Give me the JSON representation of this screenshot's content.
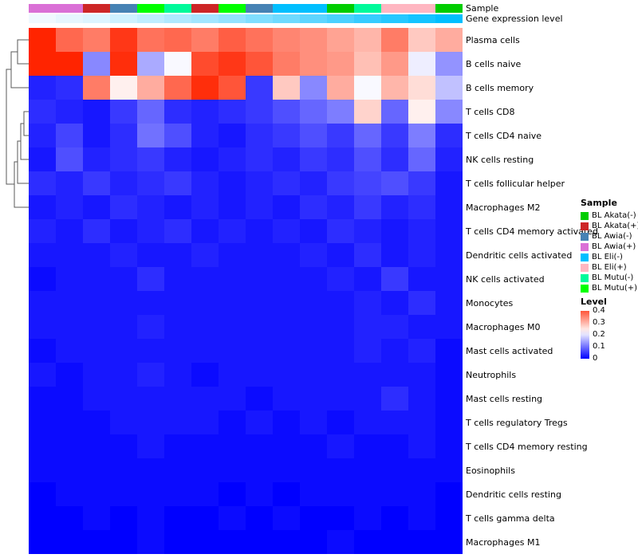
{
  "annotations": {
    "sample_label": "Sample",
    "expression_label": "Gene expression level"
  },
  "legends": {
    "sample": {
      "title": "Sample",
      "items": [
        {
          "label": "BL Akata(-)",
          "color": "#00CD00"
        },
        {
          "label": "BL Akata(+)",
          "color": "#CD2626"
        },
        {
          "label": "BL Awia(-)",
          "color": "#4682B4"
        },
        {
          "label": "BL Awia(+)",
          "color": "#DA70D6"
        },
        {
          "label": "BL Eli(-)",
          "color": "#00BFFF"
        },
        {
          "label": "BL Eli(+)",
          "color": "#FFB6C1"
        },
        {
          "label": "BL Mutu(-)",
          "color": "#00FA9A"
        },
        {
          "label": "BL Mutu(+)",
          "color": "#00FF00"
        }
      ]
    },
    "level": {
      "title": "Level",
      "ticks": [
        "0.4",
        "0.3",
        "0.2",
        "0.1",
        "0"
      ],
      "bar_max": 0.4,
      "bar_min": 0
    }
  },
  "colors": {
    "cmap": {
      "low": "#0000FF",
      "mid": "#FFFFFF",
      "high": "#FF2400",
      "vmax": 0.45
    },
    "expr_scale": {
      "low": "#F5FAFF",
      "high": "#00BFFF"
    }
  },
  "chart_data": {
    "type": "heatmap",
    "title": "",
    "legend_position": "right",
    "value_range": [
      0,
      0.45
    ],
    "rows": [
      "Plasma cells",
      "B cells naive",
      "B cells memory",
      "T cells CD8",
      "T cells CD4 naive",
      "NK cells resting",
      "T cells follicular helper",
      "Macrophages M2",
      "T cells CD4 memory activated",
      "Dendritic cells activated",
      "NK cells activated",
      "Monocytes",
      "Macrophages M0",
      "Mast cells activated",
      "Neutrophils",
      "Mast cells resting",
      "T cells regulatory  Tregs",
      "T cells CD4 memory resting",
      "Eosinophils",
      "Dendritic cells resting",
      "T cells gamma delta",
      "Macrophages M1"
    ],
    "columns_samples": [
      "BL Awia(+)",
      "BL Awia(+)",
      "BL Akata(+)",
      "BL Awia(-)",
      "BL Mutu(+)",
      "BL Mutu(-)",
      "BL Akata(+)",
      "BL Mutu(+)",
      "BL Awia(-)",
      "BL Eli(-)",
      "BL Eli(-)",
      "BL Akata(-)",
      "BL Mutu(-)",
      "BL Eli(+)",
      "BL Eli(+)",
      "BL Akata(-)"
    ],
    "column_expression": [
      0.02,
      0.06,
      0.1,
      0.16,
      0.22,
      0.28,
      0.34,
      0.4,
      0.48,
      0.55,
      0.62,
      0.7,
      0.78,
      0.85,
      0.92,
      1.0
    ],
    "values": [
      [
        0.46,
        0.38,
        0.36,
        0.43,
        0.37,
        0.38,
        0.36,
        0.39,
        0.37,
        0.35,
        0.34,
        0.32,
        0.3,
        0.36,
        0.28,
        0.31
      ],
      [
        0.45,
        0.45,
        0.12,
        0.44,
        0.15,
        0.22,
        0.41,
        0.43,
        0.4,
        0.36,
        0.34,
        0.33,
        0.29,
        0.33,
        0.21,
        0.13
      ],
      [
        0.03,
        0.04,
        0.36,
        0.24,
        0.31,
        0.38,
        0.44,
        0.4,
        0.05,
        0.28,
        0.12,
        0.31,
        0.22,
        0.3,
        0.26,
        0.17
      ],
      [
        0.04,
        0.03,
        0.02,
        0.05,
        0.09,
        0.04,
        0.03,
        0.04,
        0.05,
        0.07,
        0.09,
        0.11,
        0.27,
        0.09,
        0.24,
        0.12
      ],
      [
        0.03,
        0.06,
        0.02,
        0.04,
        0.1,
        0.07,
        0.03,
        0.02,
        0.04,
        0.05,
        0.07,
        0.05,
        0.09,
        0.05,
        0.11,
        0.04
      ],
      [
        0.02,
        0.07,
        0.03,
        0.04,
        0.05,
        0.03,
        0.02,
        0.03,
        0.04,
        0.03,
        0.05,
        0.04,
        0.07,
        0.04,
        0.09,
        0.03
      ],
      [
        0.04,
        0.03,
        0.05,
        0.03,
        0.04,
        0.05,
        0.03,
        0.02,
        0.03,
        0.04,
        0.03,
        0.05,
        0.06,
        0.07,
        0.05,
        0.02
      ],
      [
        0.02,
        0.03,
        0.02,
        0.04,
        0.03,
        0.02,
        0.03,
        0.02,
        0.03,
        0.02,
        0.04,
        0.03,
        0.05,
        0.03,
        0.04,
        0.02
      ],
      [
        0.03,
        0.02,
        0.04,
        0.02,
        0.03,
        0.04,
        0.02,
        0.03,
        0.02,
        0.03,
        0.02,
        0.04,
        0.03,
        0.02,
        0.03,
        0.02
      ],
      [
        0.02,
        0.02,
        0.02,
        0.03,
        0.02,
        0.02,
        0.03,
        0.02,
        0.02,
        0.02,
        0.03,
        0.02,
        0.04,
        0.02,
        0.03,
        0.02
      ],
      [
        0.01,
        0.02,
        0.02,
        0.02,
        0.04,
        0.02,
        0.02,
        0.02,
        0.02,
        0.02,
        0.02,
        0.03,
        0.02,
        0.05,
        0.02,
        0.02
      ],
      [
        0.02,
        0.02,
        0.02,
        0.02,
        0.02,
        0.02,
        0.02,
        0.02,
        0.02,
        0.02,
        0.02,
        0.02,
        0.03,
        0.02,
        0.04,
        0.02
      ],
      [
        0.02,
        0.02,
        0.02,
        0.02,
        0.03,
        0.02,
        0.02,
        0.02,
        0.02,
        0.02,
        0.02,
        0.02,
        0.03,
        0.03,
        0.02,
        0.02
      ],
      [
        0.01,
        0.02,
        0.02,
        0.02,
        0.02,
        0.02,
        0.02,
        0.02,
        0.02,
        0.02,
        0.02,
        0.02,
        0.03,
        0.02,
        0.03,
        0.01
      ],
      [
        0.02,
        0.01,
        0.02,
        0.02,
        0.03,
        0.02,
        0.01,
        0.02,
        0.02,
        0.02,
        0.02,
        0.02,
        0.02,
        0.02,
        0.02,
        0.01
      ],
      [
        0.01,
        0.01,
        0.02,
        0.02,
        0.02,
        0.02,
        0.02,
        0.02,
        0.01,
        0.02,
        0.02,
        0.02,
        0.02,
        0.04,
        0.02,
        0.01
      ],
      [
        0.01,
        0.01,
        0.01,
        0.02,
        0.02,
        0.02,
        0.02,
        0.01,
        0.02,
        0.01,
        0.02,
        0.01,
        0.02,
        0.02,
        0.02,
        0.01
      ],
      [
        0.01,
        0.01,
        0.01,
        0.01,
        0.02,
        0.01,
        0.01,
        0.01,
        0.01,
        0.01,
        0.01,
        0.02,
        0.01,
        0.01,
        0.02,
        0.01
      ],
      [
        0.01,
        0.01,
        0.01,
        0.01,
        0.01,
        0.01,
        0.01,
        0.01,
        0.01,
        0.01,
        0.01,
        0.01,
        0.01,
        0.01,
        0.01,
        0.01
      ],
      [
        0.0,
        0.01,
        0.01,
        0.01,
        0.01,
        0.01,
        0.01,
        0.0,
        0.01,
        0.0,
        0.01,
        0.01,
        0.01,
        0.01,
        0.01,
        0.0
      ],
      [
        0.0,
        0.0,
        0.01,
        0.0,
        0.01,
        0.0,
        0.0,
        0.01,
        0.0,
        0.01,
        0.0,
        0.0,
        0.01,
        0.0,
        0.01,
        0.0
      ],
      [
        0.0,
        0.0,
        0.0,
        0.0,
        0.01,
        0.0,
        0.0,
        0.0,
        0.0,
        0.0,
        0.0,
        0.01,
        0.0,
        0.0,
        0.0,
        0.0
      ]
    ]
  }
}
